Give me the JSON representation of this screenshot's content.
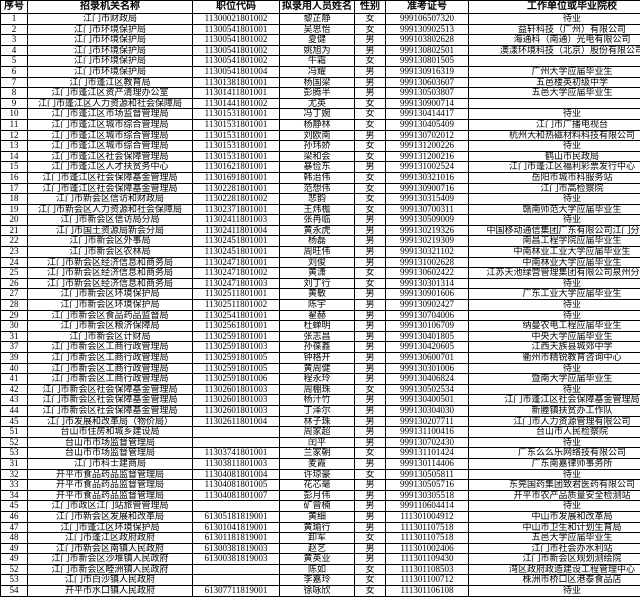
{
  "headers": [
    "序号",
    "招录机关名称",
    "职位代码",
    "拟录用人员姓名",
    "性别",
    "准考证号",
    "工作单位或毕业院校"
  ],
  "rows": [
    [
      "1",
      "江门市财政局",
      "11300021801002",
      "黎芷静",
      "女",
      "999106507320",
      "待业"
    ],
    [
      "2",
      "江门市环境保护局",
      "11300541801001",
      "吴思怡",
      "女",
      "999130902513",
      "益轩科技（广州）有限公司"
    ],
    [
      "3",
      "江门市环境保护局",
      "11300541801002",
      "夏健",
      "男",
      "999103802628",
      "海通科（南通）光电有限公司"
    ],
    [
      "4",
      "江门市环境保护局",
      "11300541801002",
      "姚旭为",
      "男",
      "999130802501",
      "澳漾环境科技（北京）股份有限公司"
    ],
    [
      "5",
      "江门市环境保护局",
      "11300541801002",
      "牛霜",
      "女",
      "999130801505",
      ""
    ],
    [
      "6",
      "江门市环境保护局",
      "11300541801004",
      "冯耀",
      "男",
      "999130916319",
      "广州大学应届毕业生"
    ],
    [
      "7",
      "江门市蓬江区教育局",
      "11301381801001",
      "杨国梁",
      "男",
      "999130603607",
      "五邑楼英初级中学"
    ],
    [
      "8",
      "江门市蓬江区资产清理办公室",
      "11301411801001",
      "彭腾半",
      "男",
      "999130503807",
      "五邑大学应届毕业生"
    ],
    [
      "9",
      "江门市蓬江区人力资源和社会保障局",
      "11301441801002",
      "尤英",
      "女",
      "999130900714",
      ""
    ],
    [
      "10",
      "江门市蓬江区市场监督管理局",
      "11301531801001",
      "冯丁婉",
      "女",
      "999130414417",
      "待业"
    ],
    [
      "11",
      "江门市蓬江区城市综合管理局",
      "11301531801001",
      "杨静林",
      "女",
      "999130405409",
      "江门市广播电视台"
    ],
    [
      "12",
      "江门市蓬江区城市综合管理局",
      "11301531801001",
      "刘欧南",
      "男",
      "999130702012",
      "杭州大和热磁材料科技有限公司"
    ],
    [
      "13",
      "江门市蓬江区城市综合管理局",
      "11301531801001",
      "孙玮娇",
      "女",
      "999131200226",
      "待业"
    ],
    [
      "14",
      "江门市蓬江区社会保障管理局",
      "11301531801001",
      "梁和会",
      "女",
      "999131200216",
      "鹤山市民政局"
    ],
    [
      "15",
      "江门市蓬江区人才扶贫务中心",
      "11301621801001",
      "暴俭东",
      "男",
      "999131002524",
      "江门市蓬江区福利彩票发行中心"
    ],
    [
      "16",
      "江门市蓬江区社会保障基金管理局",
      "11301691801001",
      "韩治伟",
      "女",
      "999130321016",
      "岳阳市城市科服务站"
    ],
    [
      "17",
      "江门市蓬江区社会保障基金管理局",
      "11302281801001",
      "范想伟",
      "女",
      "999130900716",
      "江门市高检察院"
    ],
    [
      "18",
      "江门市新会区信访和财政局",
      "11302281801002",
      "悲韵",
      "女",
      "999130315409",
      "待业"
    ],
    [
      "19",
      "江门市新会区人力资源和社会保障局",
      "11302371801001",
      "王炜檐",
      "女",
      "999130700311",
      "赣南师范大学应届毕业生"
    ],
    [
      "20",
      "江门市新会区信访局分局",
      "11302411801003",
      "张冉临",
      "男",
      "999130509009",
      "待业"
    ],
    [
      "21",
      "江门市国土资源局新会分局",
      "11302411801004",
      "黄永虎",
      "男",
      "999130219326",
      "中国移动通信集团广东有限公司江门分公司"
    ],
    [
      "22",
      "江门市新会区外事局",
      "11302451801001",
      "杨磊",
      "男",
      "999130219309",
      "南昌工程学院应届毕业生"
    ],
    [
      "23",
      "江门市新会区农林局",
      "11302451801001",
      "周旺伟",
      "男",
      "999130321102",
      "中南林业工业大学应届毕业生"
    ],
    [
      "24",
      "江门市新会区经济信息和商务局",
      "11302471801001",
      "刘俊",
      "男",
      "999131002628",
      "中南林业大学应届毕业生"
    ],
    [
      "25",
      "江门市新会区经济信息和商务局",
      "11302471801002",
      "黄潇",
      "女",
      "999130602422",
      "江苏天池绿营管理集团有限公司泉州分公司"
    ],
    [
      "26",
      "江门市新会区经济信息和商务局",
      "11302471801003",
      "刘丁行",
      "女",
      "999130301314",
      "待业"
    ],
    [
      "27",
      "江门市新会区环境保护局",
      "11302511801001",
      "黄敏",
      "男",
      "999130901606",
      "广东工业大学应届毕业生"
    ],
    [
      "28",
      "江门市新会区环境保护局",
      "11302511801002",
      "陈宇",
      "男",
      "999130902427",
      "待业"
    ],
    [
      "29",
      "江门市新会区食品药品监督局",
      "11302541801001",
      "翟赫",
      "男",
      "999130704006",
      "待业"
    ],
    [
      "30",
      "江门市新会区粮济保障局",
      "11302561801001",
      "杜蝉明",
      "男",
      "999130106709",
      "纳曼农电工程应届毕业生"
    ],
    [
      "31",
      "江门市新会区计财局",
      "11302591801001",
      "张志昌",
      "男",
      "999130401805",
      "中央大学应届毕业生"
    ],
    [
      "37",
      "江门市新会区工商行政管理局",
      "11302591801003",
      "孙葆鑫",
      "男",
      "999130420605",
      "江西天族县城郊中学"
    ],
    [
      "39",
      "江门市新会区工商行政管理局",
      "11302591801005",
      "钟格开",
      "男",
      "999130600701",
      "衢州市精锐教育咨询中心"
    ],
    [
      "40",
      "江门市新会区工商行政管理局",
      "11302591801005",
      "黄周健",
      "男",
      "999130301006",
      "待业"
    ],
    [
      "41",
      "江门市新会区工商行政管理局",
      "11302591801006",
      "程永玲",
      "男",
      "999130406824",
      "暨南大学应届毕业生"
    ],
    [
      "42",
      "江门市新会区社会保障基金管理局",
      "11302601801003",
      "周棚珠",
      "女",
      "999130502534",
      "待业"
    ],
    [
      "43",
      "江门市新会区社会保障基金管理局",
      "11302601801003",
      "杨汁竹",
      "男",
      "999130400501",
      "江门市蓬江区社会保障基金管理局"
    ],
    [
      "44",
      "江门市新会区社会保障基金管理局",
      "11302601801003",
      "丁泽尔",
      "男",
      "999130304030",
      "新塍镇扶贫办工作队"
    ],
    [
      "45",
      "江门市发展和改革局（物价局）",
      "11302611801004",
      "林子珠",
      "男",
      "999130207711",
      "江门市人力资源管理有限公司"
    ],
    [
      "51",
      "台山市住房和城乡建设局",
      "",
      "周家超",
      "男",
      "999131100416",
      "台山市人民检察院"
    ],
    [
      "52",
      "台山市市场监督管理局",
      "",
      "闰平",
      "男",
      "999130702430",
      "待业"
    ],
    [
      "53",
      "台山市市场监督管理局",
      "11303741801001",
      "兰家朝",
      "女",
      "999131101424",
      "广东么么乐网络技有限公司"
    ],
    [
      "31",
      "江门市科士建商局",
      "11303811801003",
      "麦霞",
      "男",
      "999130114406",
      "广东南嘉律师事务所"
    ],
    [
      "32",
      "开平市食品药品监督管理局",
      "11304081801004",
      "许琼豪",
      "女",
      "999130505811",
      "待业"
    ],
    [
      "33",
      "开平市食品药品监督管理局",
      "11304081801005",
      "花芯毫",
      "男",
      "999130505716",
      "东莞国药集团致君医药有限公司"
    ],
    [
      "34",
      "开平市食品药品监督管理局",
      "11304081801007",
      "彭月伟",
      "男",
      "999130305518",
      "开平市农产品质量安全检测站"
    ],
    [
      "45",
      "江门市政区江门站旅管管理局",
      "",
      "矿曾楠",
      "男",
      "999110604414",
      "待业"
    ],
    [
      "46",
      "江门市新会区发展和改革局",
      "61305181819001",
      "黄细",
      "男",
      "111301004912",
      "中山市发展和改革局"
    ],
    [
      "47",
      "江门市蓬江区环境保护局",
      "61301041819001",
      "黄瑜行",
      "男",
      "111301107518",
      "中山市卫生和计划生育局"
    ],
    [
      "48",
      "江门市蓬江区政府政府",
      "61301181819001",
      "卸军",
      "女",
      "111301107518",
      "五邑大学应届毕业生"
    ],
    [
      "49",
      "江门市新会区南镇人民政府",
      "61300381819003",
      "赵艺",
      "男",
      "111301002406",
      "江门市社会办水利站"
    ],
    [
      "49",
      "江门市新会区沙堆镇人民政府",
      "61300381819003",
      "黄英业",
      "男",
      "111301109430",
      "江门市新会区规划测绘院"
    ],
    [
      "52",
      "江门市新会区睦洲镇人民政府",
      "",
      "陈如",
      "女",
      "111301108503",
      "湾区政府政造建设工程管理中心"
    ],
    [
      "53",
      "江门市白沙镇人民政府",
      "",
      "李嘉玲",
      "女",
      "111301100712",
      "株洲市桥口区港泰食品店"
    ],
    [
      "54",
      "开平市水口镇人民政府",
      "61307711819001",
      "徐咏欣",
      "女",
      "111301106108",
      "待业"
    ]
  ]
}
